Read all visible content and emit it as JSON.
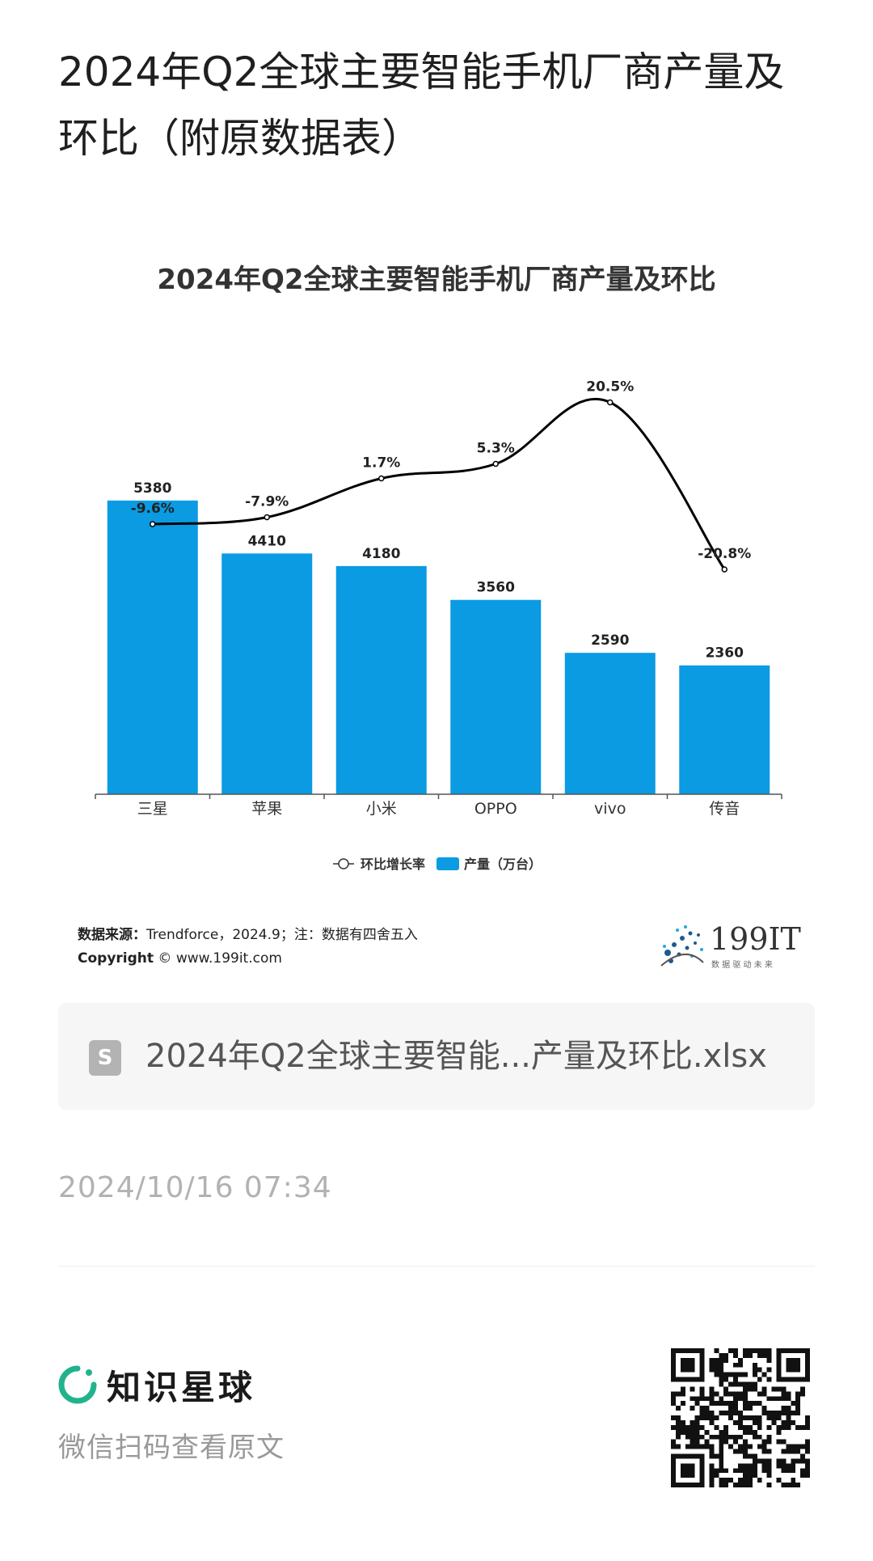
{
  "page": {
    "title": "2024年Q2全球主要智能手机厂商产量及环比（附原数据表）",
    "source_label": "数据来源：",
    "source_text": "Trendforce，2024.9；注：数据有四舍五入",
    "copyright_label": "Copyright",
    "copyright_text": "© www.199it.com",
    "brand_logo_text": "199IT",
    "brand_logo_sub": "数 据 驱 动 未 来",
    "file_icon_letter": "S",
    "file_name": "2024年Q2全球主要智能...产量及环比.xlsx",
    "timestamp": "2024/10/16 07:34",
    "footer_brand": "知识星球",
    "footer_hint": "微信扫码查看原文"
  },
  "colors": {
    "bar": "#0a9be3",
    "line": "#000000",
    "accent": "#21b38c"
  },
  "chart_data": {
    "type": "bar",
    "title": "2024年Q2全球主要智能手机厂商产量及环比",
    "categories": [
      "三星",
      "苹果",
      "小米",
      "OPPO",
      "vivo",
      "传音"
    ],
    "series": [
      {
        "name": "产量（万台）",
        "type": "bar",
        "values": [
          5380,
          4410,
          4180,
          3560,
          2590,
          2360
        ],
        "labels": [
          "5380",
          "4410",
          "4180",
          "3560",
          "2590",
          "2360"
        ]
      },
      {
        "name": "环比增长率",
        "type": "line",
        "values": [
          -9.6,
          -7.9,
          1.7,
          5.3,
          20.5,
          -20.8
        ],
        "labels": [
          "-9.6%",
          "-7.9%",
          "1.7%",
          "5.3%",
          "20.5%",
          "-20.8%"
        ]
      }
    ],
    "legend": [
      "环比增长率",
      "产量（万台）"
    ],
    "legend_position": "bottom",
    "grid": false
  }
}
